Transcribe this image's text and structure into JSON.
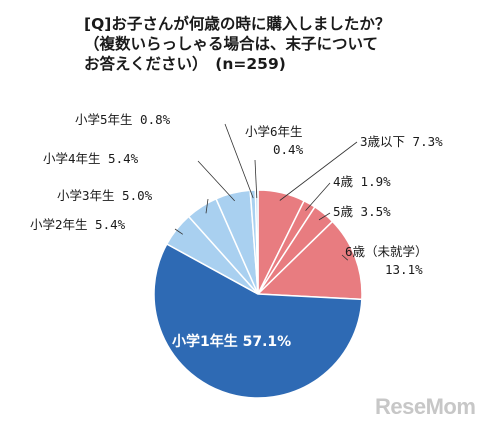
{
  "chart_data": {
    "type": "pie",
    "title": "[Q]お子さんが何歳の時に購入しましたか？",
    "subtitle_lines": [
      "（複数いらっしゃる場合は、末子について",
      "お答えください）　(n=259)"
    ],
    "slices": [
      {
        "label": "3歳以下",
        "value": 7.3,
        "display": "3歳以下 7.3%",
        "color": "#e87c80"
      },
      {
        "label": "4歳",
        "value": 1.9,
        "display": "4歳 1.9%",
        "color": "#e87c80"
      },
      {
        "label": "5歳",
        "value": 3.5,
        "display": "5歳 3.5%",
        "color": "#e87c80"
      },
      {
        "label": "6歳（未就学）",
        "value": 13.1,
        "display_lines": [
          "6歳（未就学）",
          "13.1%"
        ],
        "color": "#e87c80"
      },
      {
        "label": "小学1年生",
        "value": 57.1,
        "display": "小学1年生 57.1%",
        "color": "#2e6ab4"
      },
      {
        "label": "小学2年生",
        "value": 5.4,
        "display": "小学2年生 5.4%",
        "color": "#a9d0f0"
      },
      {
        "label": "小学3年生",
        "value": 5.0,
        "display": "小学3年生 5.0%",
        "color": "#a9d0f0"
      },
      {
        "label": "小学4年生",
        "value": 5.4,
        "display": "小学4年生 5.4%",
        "color": "#a9d0f0"
      },
      {
        "label": "小学5年生",
        "value": 0.8,
        "display": "小学5年生 0.8%",
        "color": "#a9d0f0"
      },
      {
        "label": "小学6年生",
        "value": 0.4,
        "display_lines": [
          "小学6年生",
          "0.4%"
        ],
        "color": "#a9d0f0"
      }
    ]
  },
  "logo_text": "ReseMom"
}
